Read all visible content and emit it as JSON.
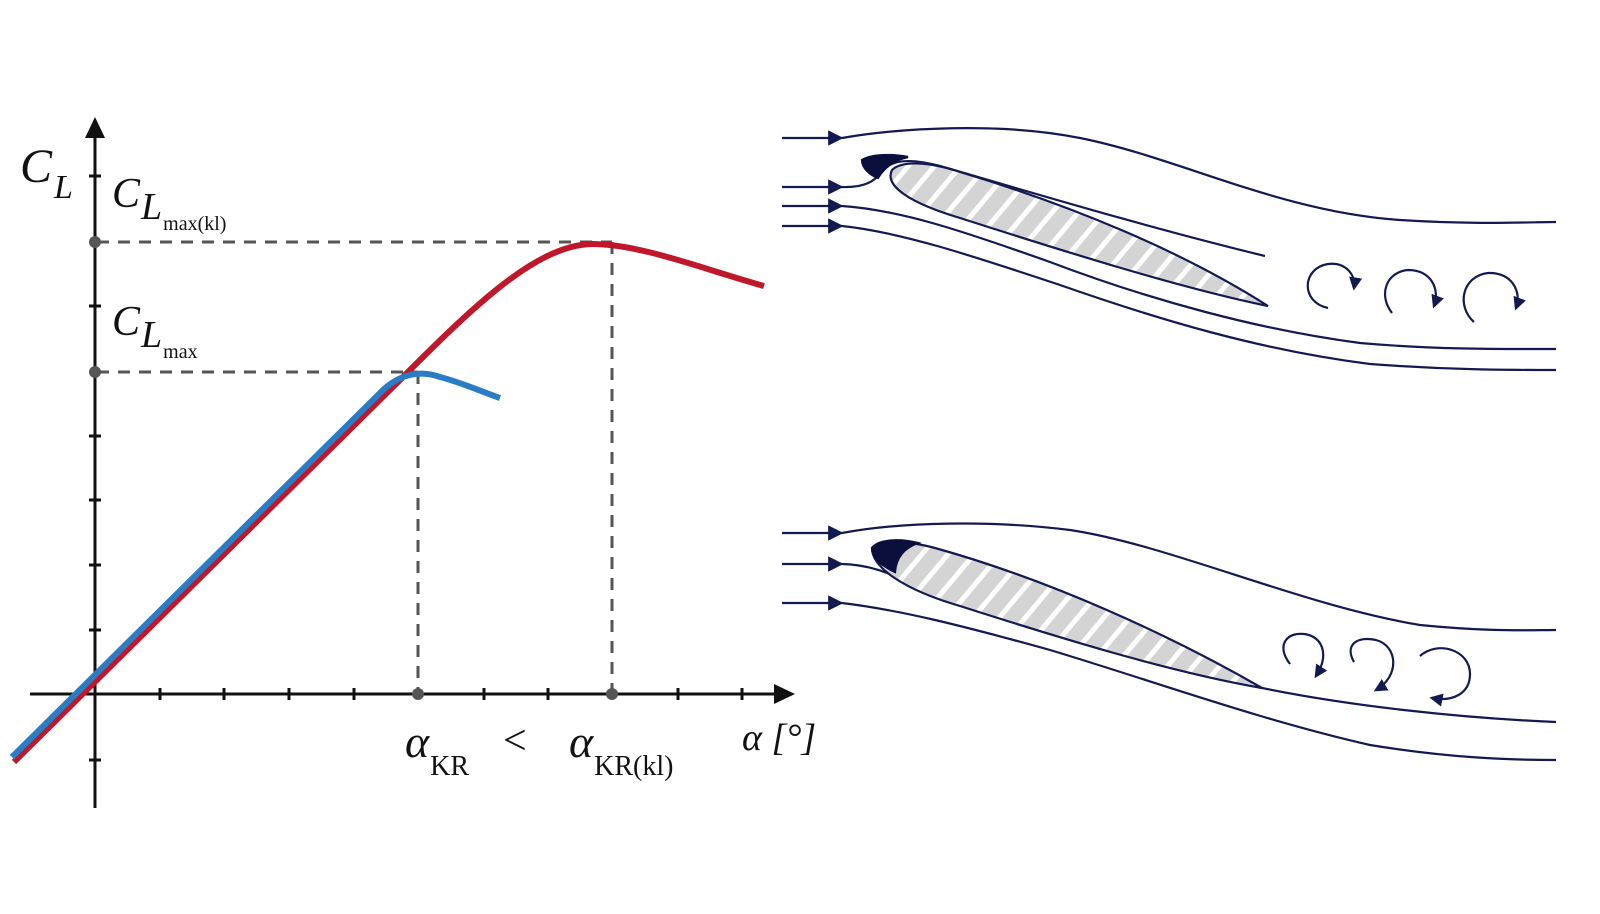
{
  "graph": {
    "y_axis_symbol": "C",
    "y_axis_sub": "L",
    "x_axis_label": "α [°]",
    "cl_max_flap_symbol": "C",
    "cl_max_flap_sub": "L",
    "cl_max_flap_subsub": "max(kl)",
    "cl_max_symbol": "C",
    "cl_max_sub": "L",
    "cl_max_subsub": "max",
    "alpha_cr_symbol": "α",
    "alpha_cr_sub": "KR",
    "comparison": "<",
    "alpha_cr_flap_symbol": "α",
    "alpha_cr_flap_sub": "KR(kl)"
  },
  "colors": {
    "curve_with_slat": "#c0182a",
    "curve_basic": "#2a7dc4",
    "axis": "#111111",
    "dashed_guides": "#555555",
    "streamlines": "#131a4f",
    "airfoil_fill": "#d4d4d4",
    "slat": "#0b0f3c"
  },
  "icons": {
    "flow_arrow": "arrow-right-icon",
    "vortex": "vortex-arrow-icon"
  }
}
